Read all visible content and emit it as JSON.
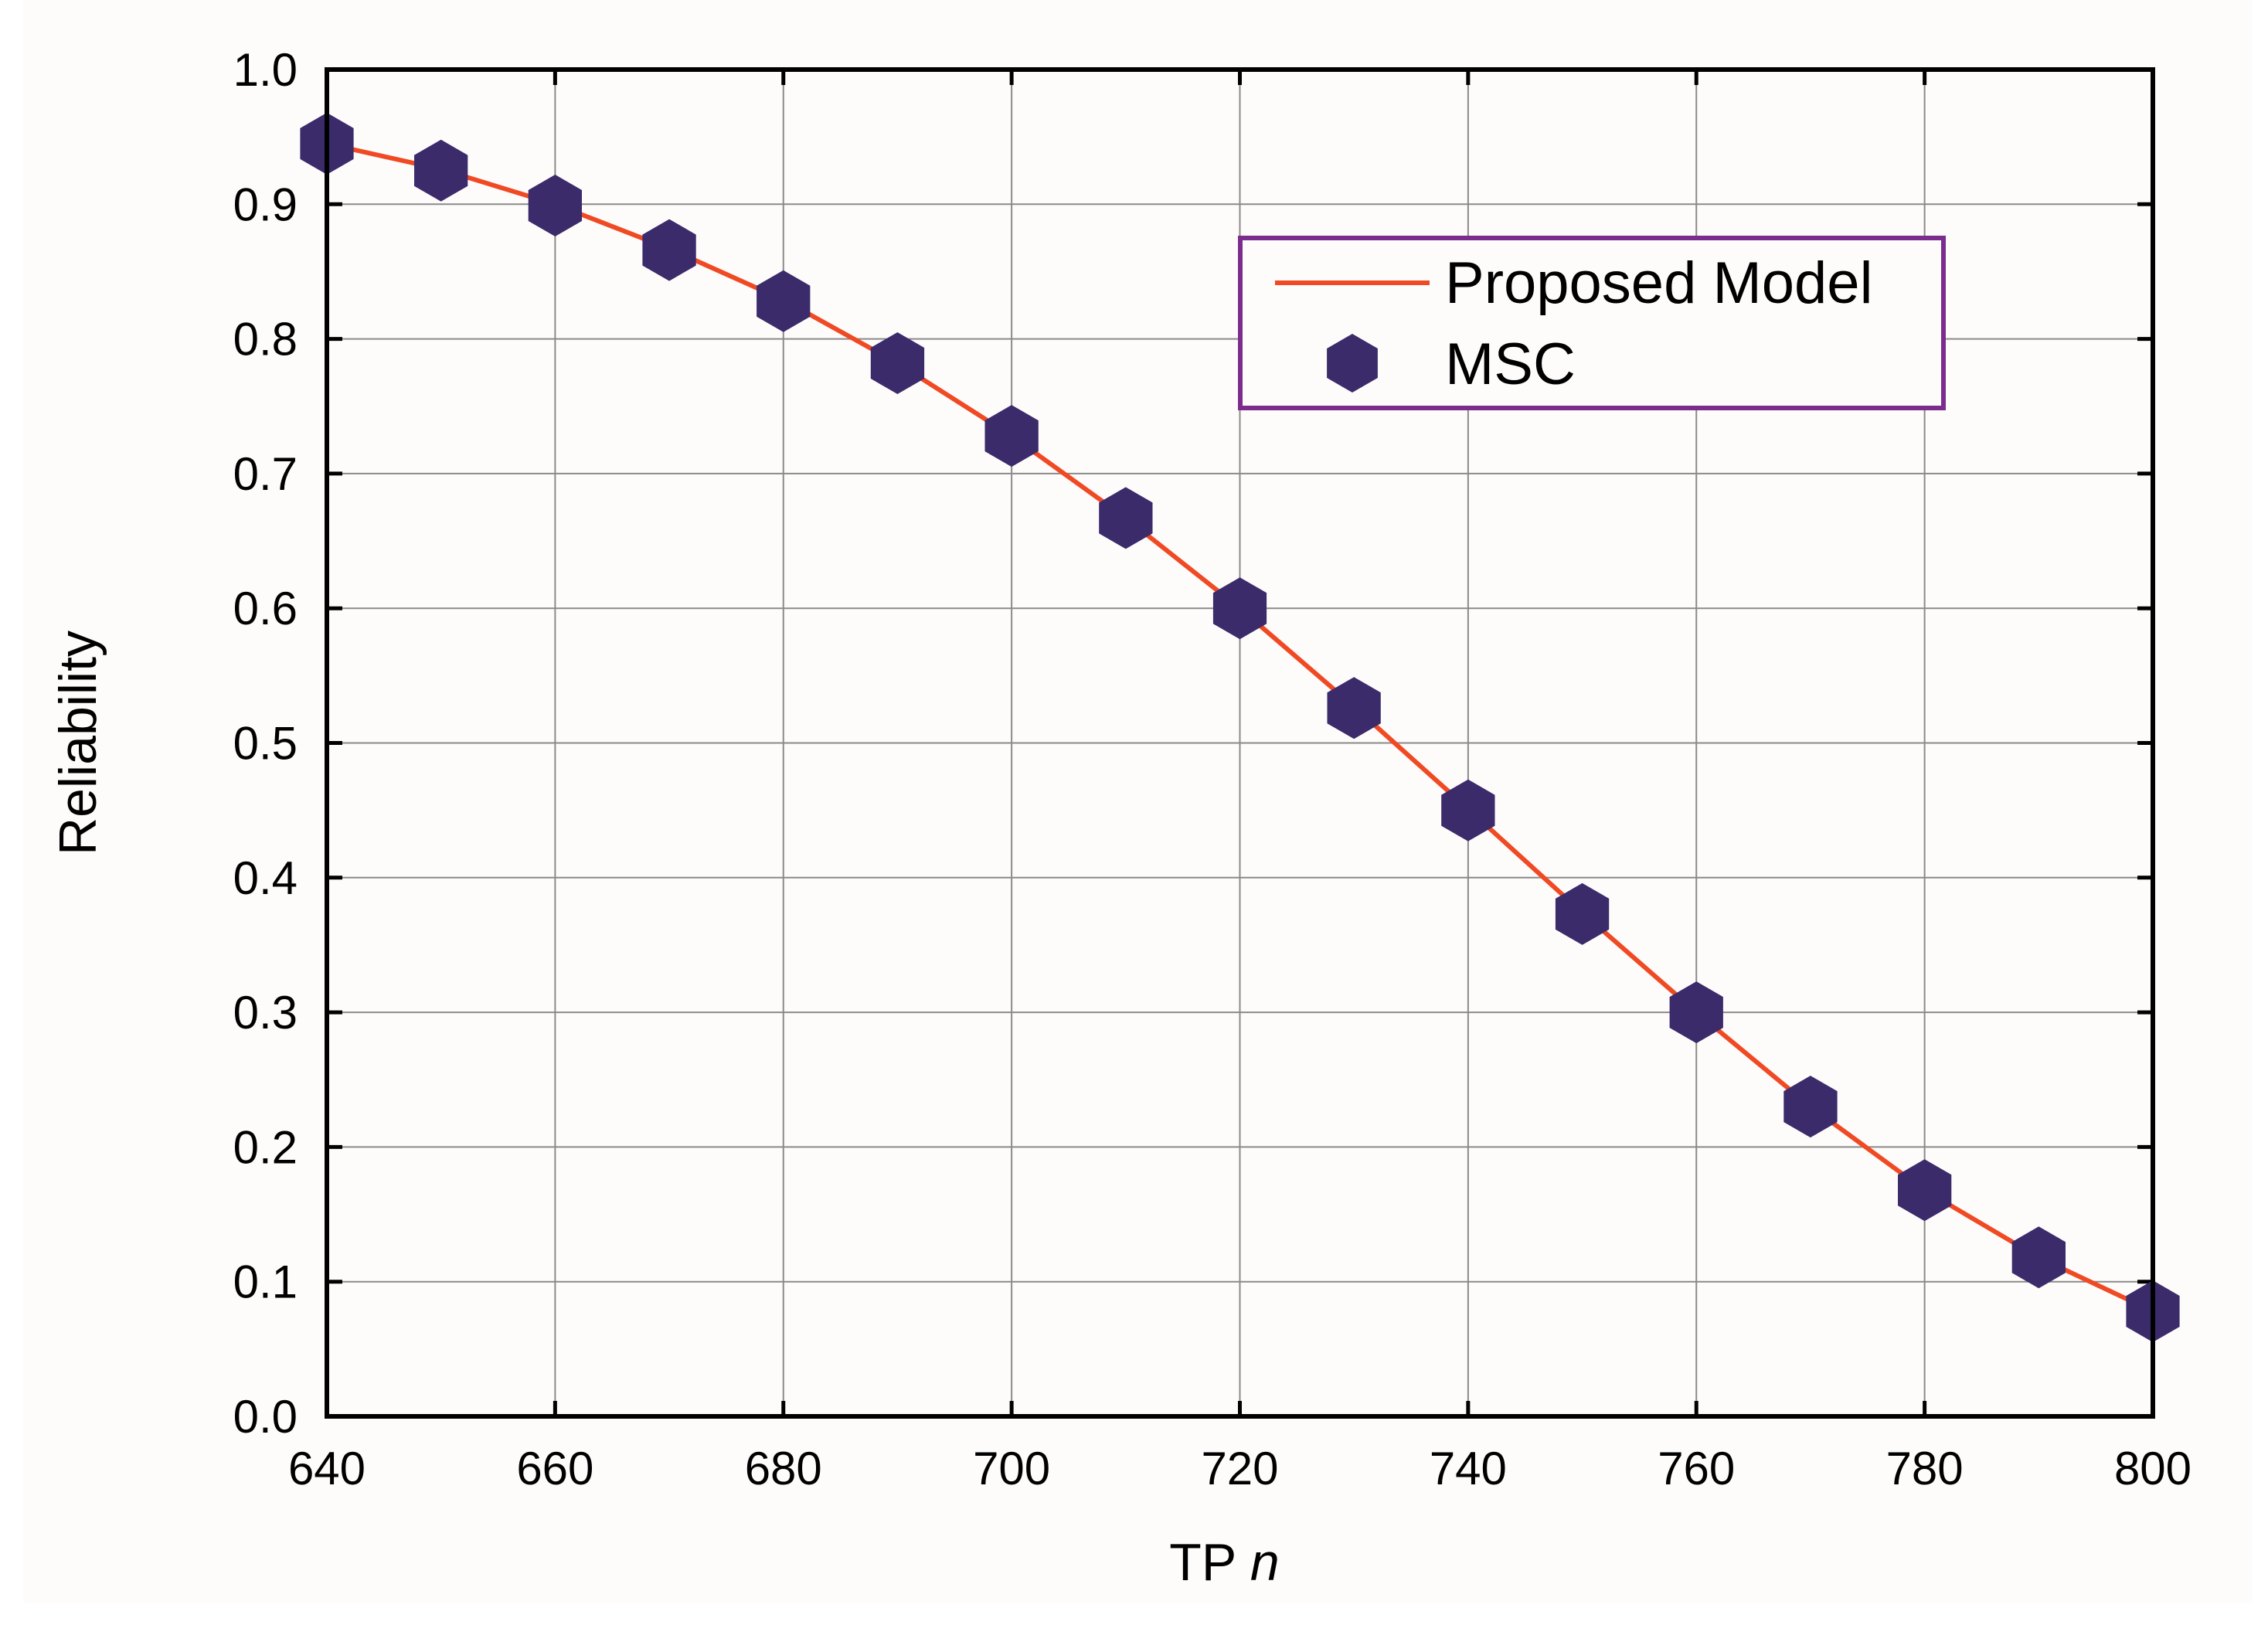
{
  "chart_data": {
    "type": "line",
    "title": "",
    "xlabel": "TP",
    "xlabel_italic": "n",
    "ylabel": "Reliability",
    "xlim": [
      640,
      800
    ],
    "ylim": [
      0.0,
      1.0
    ],
    "x_ticks": [
      "640",
      "660",
      "680",
      "700",
      "720",
      "740",
      "760",
      "780",
      "800"
    ],
    "y_ticks": [
      "0.0",
      "0.1",
      "0.2",
      "0.3",
      "0.4",
      "0.5",
      "0.6",
      "0.7",
      "0.8",
      "0.9",
      "1.0"
    ],
    "grid": true,
    "legend_position": "top-right",
    "x": [
      640,
      650,
      660,
      670,
      680,
      690,
      700,
      710,
      720,
      730,
      740,
      750,
      760,
      770,
      780,
      790,
      800
    ],
    "series": [
      {
        "name": "Proposed Model",
        "kind": "line",
        "color": "#f04a24",
        "values": [
          0.945,
          0.926,
          0.9,
          0.867,
          0.829,
          0.782,
          0.728,
          0.667,
          0.6,
          0.527,
          0.451,
          0.374,
          0.3,
          0.23,
          0.168,
          0.118,
          0.078
        ]
      },
      {
        "name": "MSC",
        "kind": "scatter",
        "marker": "hexagon",
        "color": "#3b2b6b",
        "values": [
          0.945,
          0.925,
          0.899,
          0.866,
          0.828,
          0.782,
          0.728,
          0.667,
          0.6,
          0.526,
          0.45,
          0.373,
          0.3,
          0.23,
          0.168,
          0.118,
          0.078
        ]
      }
    ],
    "colors": {
      "plot_background": "#fefcfb",
      "grid": "#8a8a8a",
      "axis": "#000000",
      "legend_border": "#7b2d8e"
    }
  }
}
